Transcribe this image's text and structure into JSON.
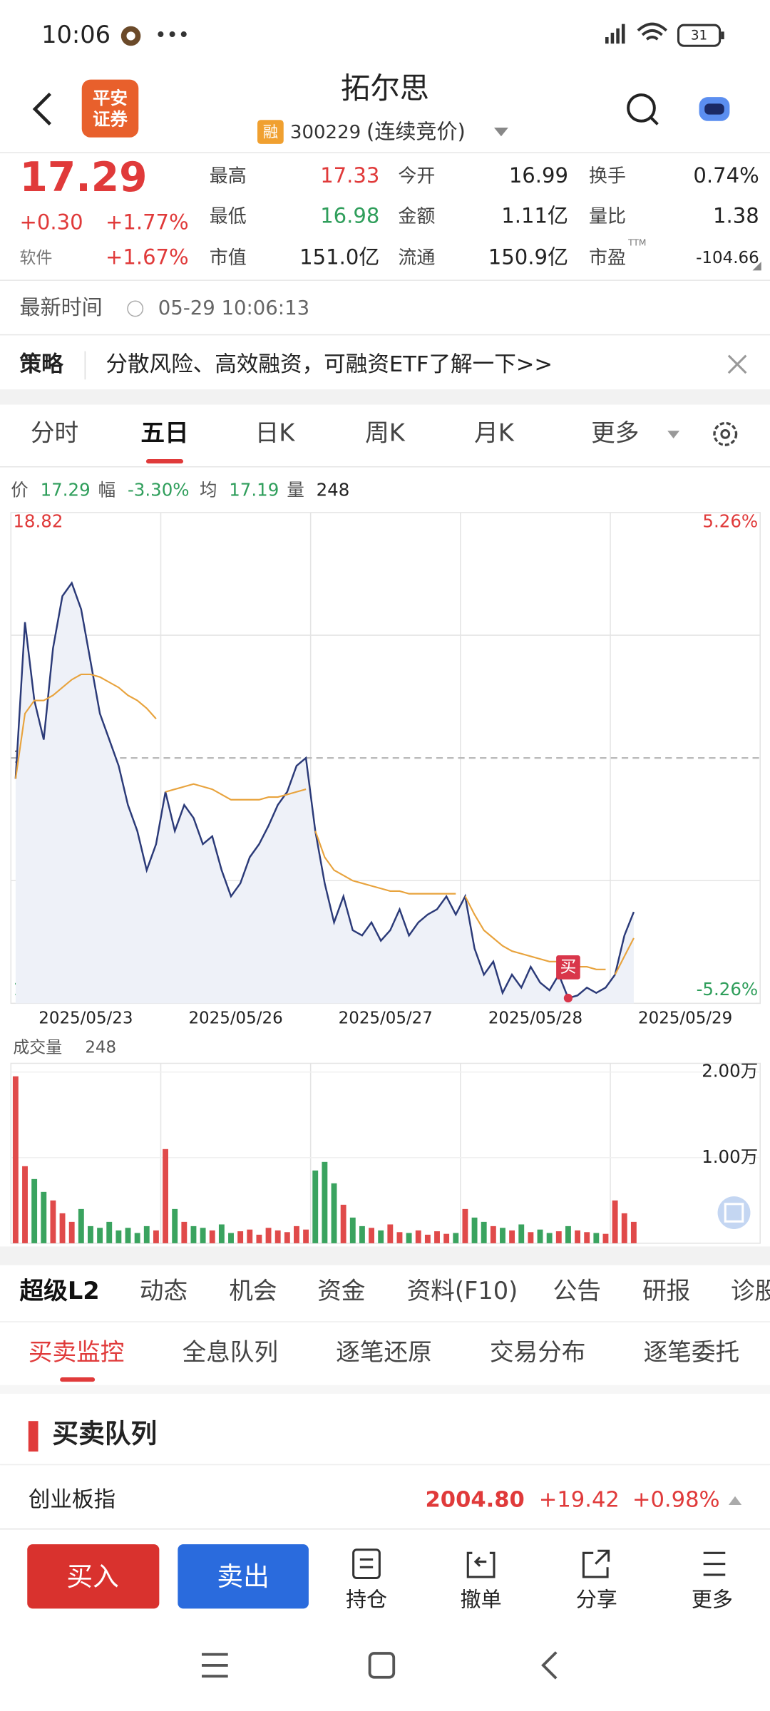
{
  "status_bar": {
    "time": "10:06",
    "battery": "31"
  },
  "header": {
    "logo": [
      "平安",
      "证券"
    ],
    "title": "拓尔思",
    "badge": "融",
    "code": "300229",
    "status": "(连续竞价)"
  },
  "quote": {
    "price": "17.29",
    "change": "+0.30",
    "change_pct": "+1.77%",
    "sector": "软件",
    "sector_pct": "+1.67%",
    "stats": [
      [
        "最高",
        "17.33",
        "今开",
        "16.99",
        "换手",
        "0.74%"
      ],
      [
        "最低",
        "16.98",
        "金额",
        "1.11亿",
        "量比",
        "1.38"
      ],
      [
        "市值",
        "151.0亿",
        "流通",
        "150.9亿",
        "市盈",
        "-104.66"
      ]
    ],
    "pe_sup": "TTM"
  },
  "update": {
    "label": "最新时间",
    "value": "05-29 10:06:13"
  },
  "strategy": {
    "tag": "策略",
    "text": "分散风险、高效融资，可融资ETF了解一下>>"
  },
  "chart_tabs": {
    "items": [
      "分时",
      "五日",
      "日K",
      "周K",
      "月K",
      "更多"
    ],
    "active": 1
  },
  "legend": [
    [
      "价",
      "17.29"
    ],
    [
      "幅",
      "-3.30%"
    ],
    [
      "均",
      "17.19"
    ],
    [
      "量",
      "248"
    ]
  ],
  "chart": {
    "type": "line",
    "ylim": [
      16.94,
      18.82
    ],
    "yticks": [
      18.82,
      17.88,
      16.94
    ],
    "y2lim": [
      -5.26,
      5.26
    ],
    "y2ticks": [
      {
        "value": 5.26,
        "label": "5.26%"
      },
      {
        "value": -5.26,
        "label": "-5.26%"
      }
    ],
    "dates": [
      "2025/05/23",
      "2025/05/26",
      "2025/05/27",
      "2025/05/28",
      "2025/05/29"
    ],
    "series": [
      {
        "color": "#2b3a78",
        "values": [
          17.8,
          18.4,
          18.1,
          17.95,
          18.3,
          18.5,
          18.55,
          18.45,
          18.25,
          18.05,
          17.95,
          17.85,
          17.7,
          17.6,
          17.45,
          17.55,
          17.75,
          17.6,
          17.7,
          17.65,
          17.55,
          17.58,
          17.45,
          17.35,
          17.4,
          17.5,
          17.55,
          17.62,
          17.7,
          17.75,
          17.85,
          17.88,
          17.6,
          17.4,
          17.25,
          17.35,
          17.22,
          17.2,
          17.25,
          17.18,
          17.22,
          17.3,
          17.2,
          17.25,
          17.28,
          17.3,
          17.35,
          17.28,
          17.35,
          17.15,
          17.05,
          17.1,
          16.98,
          17.05,
          17.0,
          17.08,
          17.02,
          16.99,
          17.05,
          16.96,
          16.97,
          17.0,
          16.98,
          17.0,
          17.05,
          17.2,
          17.29
        ]
      },
      {
        "color": "#e8a33d",
        "values": [
          17.8,
          18.05,
          18.1,
          18.1,
          18.12,
          18.15,
          18.18,
          18.2,
          18.2,
          18.19,
          18.17,
          18.15,
          18.12,
          18.1,
          18.07,
          18.03,
          17.75,
          17.76,
          17.77,
          17.78,
          17.77,
          17.76,
          17.74,
          17.72,
          17.72,
          17.72,
          17.72,
          17.73,
          17.73,
          17.74,
          17.75,
          17.76,
          17.6,
          17.5,
          17.45,
          17.43,
          17.41,
          17.4,
          17.39,
          17.38,
          17.37,
          17.37,
          17.36,
          17.36,
          17.36,
          17.36,
          17.36,
          17.36,
          17.35,
          17.28,
          17.22,
          17.19,
          17.16,
          17.14,
          17.13,
          17.12,
          17.11,
          17.1,
          17.1,
          17.09,
          17.08,
          17.08,
          17.07,
          17.07,
          17.05,
          17.12,
          17.19
        ]
      }
    ],
    "buy_marker": "买"
  },
  "volume": {
    "type": "bar",
    "label": "成交量",
    "value": "248",
    "ylim": [
      0,
      20000
    ],
    "yticks": [
      {
        "value": 20000,
        "label": "2.00万"
      },
      {
        "value": 10000,
        "label": "1.00万"
      }
    ],
    "values": [
      19500,
      9000,
      7500,
      6000,
      5000,
      3500,
      2500,
      4000,
      2000,
      1800,
      2500,
      1500,
      1800,
      1200,
      2000,
      1500,
      11000,
      4000,
      2500,
      2000,
      1800,
      1500,
      2200,
      1200,
      1400,
      1600,
      1000,
      1800,
      1500,
      1300,
      2000,
      1600,
      8500,
      9500,
      7000,
      4500,
      3000,
      2000,
      1800,
      1500,
      2200,
      1300,
      1200,
      1500,
      1000,
      1400,
      1100,
      1200,
      4000,
      3000,
      2500,
      2000,
      1800,
      1500,
      2200,
      1300,
      1600,
      1200,
      1400,
      2000,
      1500,
      1300,
      1200,
      1100,
      5000,
      3500,
      2500
    ]
  },
  "info_tabs": [
    "超级L2",
    "动态",
    "机会",
    "资金",
    "资料(F10)",
    "公告",
    "研报",
    "诊股"
  ],
  "sub_tabs": [
    "买卖监控",
    "全息队列",
    "逐笔还原",
    "交易分布",
    "逐笔委托"
  ],
  "section": {
    "title": "买卖队列"
  },
  "index_row": {
    "name": "创业板指",
    "value": "2004.80",
    "change": "+19.42",
    "change_pct": "+0.98%"
  },
  "actions": {
    "buy": "买入",
    "sell": "卖出",
    "items": [
      "持仓",
      "撤单",
      "分享",
      "更多"
    ]
  }
}
